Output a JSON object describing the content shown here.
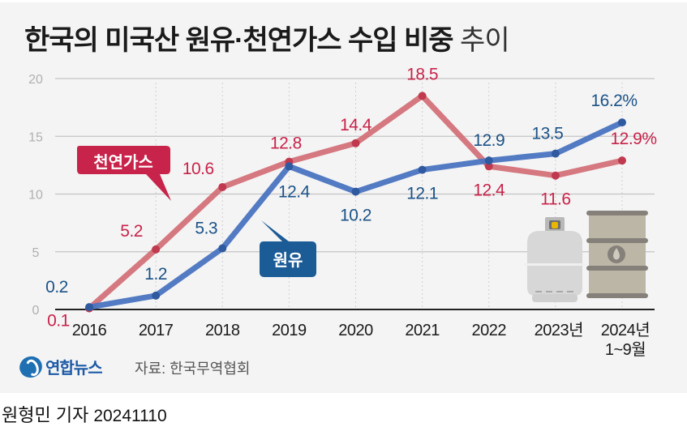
{
  "header": {
    "title_main": "한국의 미국산 원유·천연가스 수입 비중",
    "title_suffix": "추이"
  },
  "footer": {
    "logo_text": "연합뉴스",
    "source": "자료: 한국무역협회",
    "reporter": "원형민 기자",
    "date": "20241110"
  },
  "colors": {
    "gas": "#d26a73",
    "gas_label": "#c8234a",
    "oil": "#4a74c0",
    "oil_label": "#1b5288",
    "gas_tag_bg": "#c8234a",
    "oil_tag_bg": "#1b5b96"
  },
  "chart_data": {
    "type": "line",
    "title": "한국의 미국산 원유·천연가스 수입 비중 추이",
    "xlabel": "",
    "ylabel": "",
    "categories": [
      "2016",
      "2017",
      "2018",
      "2019",
      "2020",
      "2021",
      "2022",
      "2023년",
      "2024년 1~9월"
    ],
    "category_lines": [
      [
        "2016"
      ],
      [
        "2017"
      ],
      [
        "2018"
      ],
      [
        "2019"
      ],
      [
        "2020"
      ],
      [
        "2021"
      ],
      [
        "2022"
      ],
      [
        "2023년"
      ],
      [
        "2024년",
        "1~9월"
      ]
    ],
    "ylim": [
      0,
      20
    ],
    "yticks": [
      0,
      5,
      10,
      15,
      20
    ],
    "grid": true,
    "unit": "%",
    "series": [
      {
        "name": "천연가스",
        "key": "gas",
        "values": [
          0.1,
          5.2,
          10.6,
          12.8,
          14.4,
          18.5,
          12.4,
          11.6,
          12.9
        ],
        "labels": [
          "0.1",
          "5.2",
          "10.6",
          "12.8",
          "14.4",
          "18.5",
          "12.4",
          "11.6",
          "12.9%"
        ]
      },
      {
        "name": "원유",
        "key": "oil",
        "values": [
          0.2,
          1.2,
          5.3,
          12.4,
          10.2,
          12.1,
          12.9,
          13.5,
          16.2
        ],
        "labels": [
          "0.2",
          "1.2",
          "5.3",
          "12.4",
          "10.2",
          "12.1",
          "12.9",
          "13.5",
          "16.2%"
        ]
      }
    ],
    "legend": [
      {
        "label": "천연가스",
        "series": "gas",
        "placement": "callout-left"
      },
      {
        "label": "원유",
        "series": "oil",
        "placement": "callout-center"
      }
    ],
    "illustrations": [
      "gas-cylinder",
      "oil-barrel"
    ]
  }
}
